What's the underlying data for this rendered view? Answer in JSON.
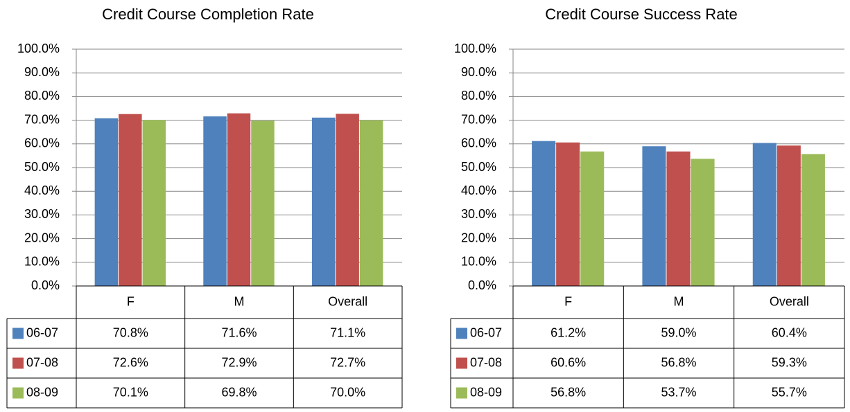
{
  "chart_data": [
    {
      "type": "bar",
      "title": "Credit Course Completion Rate",
      "categories": [
        "F",
        "M",
        "Overall"
      ],
      "series": [
        {
          "name": "06-07",
          "color": "#4f81bd",
          "values": [
            70.8,
            71.6,
            71.1
          ],
          "value_labels": [
            "70.8%",
            "71.6%",
            "71.1%"
          ]
        },
        {
          "name": "07-08",
          "color": "#c0504d",
          "values": [
            72.6,
            72.9,
            72.7
          ],
          "value_labels": [
            "72.6%",
            "72.9%",
            "72.7%"
          ]
        },
        {
          "name": "08-09",
          "color": "#9bbb59",
          "values": [
            70.1,
            69.8,
            70.0
          ],
          "value_labels": [
            "70.1%",
            "69.8%",
            "70.0%"
          ]
        }
      ],
      "ylim": [
        0,
        100
      ],
      "yticks": [
        {
          "value": 0,
          "label": "0.0%"
        },
        {
          "value": 10,
          "label": "10.0%"
        },
        {
          "value": 20,
          "label": "20.0%"
        },
        {
          "value": 30,
          "label": "30.0%"
        },
        {
          "value": 40,
          "label": "40.0%"
        },
        {
          "value": 50,
          "label": "50.0%"
        },
        {
          "value": 60,
          "label": "60.0%"
        },
        {
          "value": 70,
          "label": "70.0%"
        },
        {
          "value": 80,
          "label": "80.0%"
        },
        {
          "value": 90,
          "label": "90.0%"
        },
        {
          "value": 100,
          "label": "100.0%"
        }
      ],
      "grid": true
    },
    {
      "type": "bar",
      "title": "Credit Course Success Rate",
      "categories": [
        "F",
        "M",
        "Overall"
      ],
      "series": [
        {
          "name": "06-07",
          "color": "#4f81bd",
          "values": [
            61.2,
            59.0,
            60.4
          ],
          "value_labels": [
            "61.2%",
            "59.0%",
            "60.4%"
          ]
        },
        {
          "name": "07-08",
          "color": "#c0504d",
          "values": [
            60.6,
            56.8,
            59.3
          ],
          "value_labels": [
            "60.6%",
            "56.8%",
            "59.3%"
          ]
        },
        {
          "name": "08-09",
          "color": "#9bbb59",
          "values": [
            56.8,
            53.7,
            55.7
          ],
          "value_labels": [
            "56.8%",
            "53.7%",
            "55.7%"
          ]
        }
      ],
      "ylim": [
        0,
        100
      ],
      "yticks": [
        {
          "value": 0,
          "label": "0.0%"
        },
        {
          "value": 10,
          "label": "10.0%"
        },
        {
          "value": 20,
          "label": "20.0%"
        },
        {
          "value": 30,
          "label": "30.0%"
        },
        {
          "value": 40,
          "label": "40.0%"
        },
        {
          "value": 50,
          "label": "50.0%"
        },
        {
          "value": 60,
          "label": "60.0%"
        },
        {
          "value": 70,
          "label": "70.0%"
        },
        {
          "value": 80,
          "label": "80.0%"
        },
        {
          "value": 90,
          "label": "90.0%"
        },
        {
          "value": 100,
          "label": "100.0%"
        }
      ],
      "grid": true
    }
  ]
}
